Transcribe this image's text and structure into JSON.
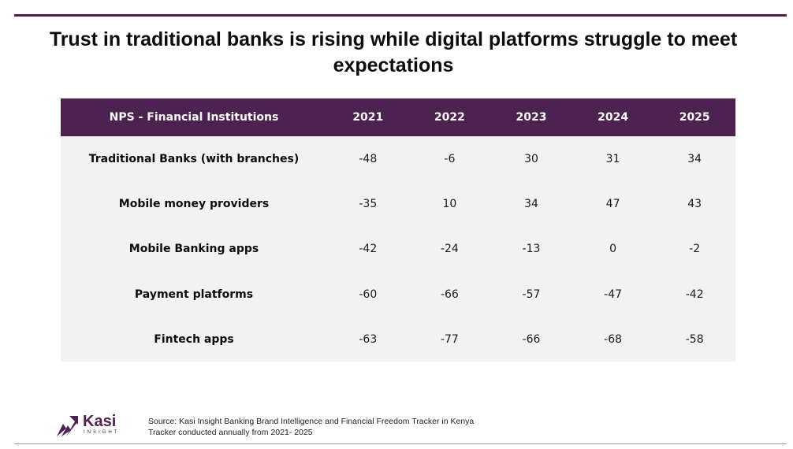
{
  "title": "Trust in traditional banks is rising while digital platforms struggle to meet expectations",
  "colors": {
    "accent": "#4e2250",
    "row_bg": "#f2f2f2"
  },
  "chart_data": {
    "type": "table",
    "columns": [
      "NPS - Financial Institutions",
      "2021",
      "2022",
      "2023",
      "2024",
      "2025"
    ],
    "rows": [
      {
        "label": "Traditional Banks (with branches)",
        "values": [
          -48,
          -6,
          30,
          31,
          34
        ]
      },
      {
        "label": "Mobile money providers",
        "values": [
          -35,
          10,
          34,
          47,
          43
        ]
      },
      {
        "label": "Mobile Banking apps",
        "values": [
          -42,
          -24,
          -13,
          0,
          -2
        ]
      },
      {
        "label": "Payment platforms",
        "values": [
          -60,
          -66,
          -57,
          -47,
          -42
        ]
      },
      {
        "label": "Fintech apps",
        "values": [
          -63,
          -77,
          -66,
          -68,
          -58
        ]
      }
    ]
  },
  "footer": {
    "source_line1": "Source: Kasi Insight Banking Brand Intelligence and Financial Freedom Tracker in Kenya",
    "source_line2": "Tracker conducted annually from 2021- 2025",
    "logo_word": "Kasi",
    "logo_sub": "INSIGHT",
    "logo_icon": "kasi-arrow-icon"
  }
}
